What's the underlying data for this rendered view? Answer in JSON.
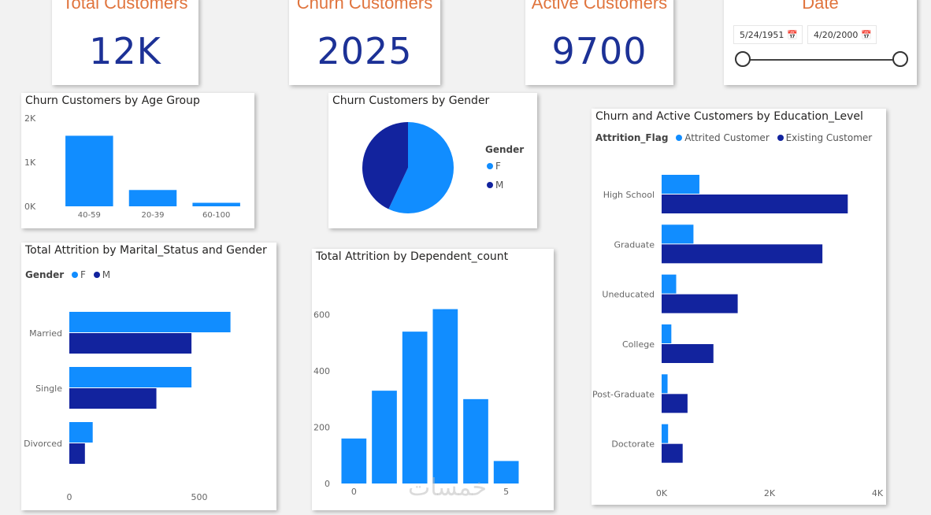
{
  "colors": {
    "light": "#118dff",
    "dark": "#12239e",
    "accent": "#e0743d"
  },
  "kpis": {
    "total": {
      "title": "Total Customers",
      "value": "12K"
    },
    "churn": {
      "title": "Churn Customers",
      "value": "2025"
    },
    "active": {
      "title": "Active Customers",
      "value": "9700"
    }
  },
  "date_slicer": {
    "title": "Date",
    "start": "5/24/1951",
    "end": "4/20/2000"
  },
  "chart_data": [
    {
      "id": "age",
      "type": "bar",
      "title": "Churn Customers by Age Group",
      "categories": [
        "40-59",
        "20-39",
        "60-100"
      ],
      "values": [
        1600,
        370,
        80
      ],
      "ylim": [
        0,
        2000
      ],
      "yticks": [
        {
          "v": 0,
          "label": "0K"
        },
        {
          "v": 1000,
          "label": "1K"
        },
        {
          "v": 2000,
          "label": "2K"
        }
      ]
    },
    {
      "id": "gender",
      "type": "pie",
      "title": "Churn Customers by Gender",
      "legend_title": "Gender",
      "labels": [
        "F",
        "M"
      ],
      "values": [
        57,
        43
      ]
    },
    {
      "id": "marital",
      "type": "bar",
      "orientation": "horizontal",
      "title": "Total Attrition by Marital_Status and Gender",
      "legend_title": "Gender",
      "categories": [
        "Married",
        "Single",
        "Divorced"
      ],
      "series": [
        {
          "name": "F",
          "values": [
            620,
            470,
            90
          ]
        },
        {
          "name": "M",
          "values": [
            470,
            335,
            60
          ]
        }
      ],
      "xlim": [
        0,
        800
      ],
      "xticks": [
        {
          "v": 0,
          "label": "0"
        },
        {
          "v": 500,
          "label": "500"
        }
      ]
    },
    {
      "id": "dependent",
      "type": "bar",
      "title": "Total Attrition by Dependent_count",
      "categories": [
        "0",
        "1",
        "2",
        "3",
        "4",
        "5"
      ],
      "values": [
        160,
        330,
        540,
        620,
        300,
        80
      ],
      "ylim": [
        0,
        700
      ],
      "yticks": [
        {
          "v": 0,
          "label": "0"
        },
        {
          "v": 200,
          "label": "200"
        },
        {
          "v": 400,
          "label": "400"
        },
        {
          "v": 600,
          "label": "600"
        }
      ],
      "xticks": [
        {
          "v": 0,
          "label": "0"
        },
        {
          "v": 5,
          "label": "5"
        }
      ]
    },
    {
      "id": "education",
      "type": "bar",
      "orientation": "horizontal",
      "title": "Churn and Active Customers by Education_Level",
      "legend_title": "Attrition_Flag",
      "categories": [
        "High School",
        "Graduate",
        "Uneducated",
        "College",
        "Post-Graduate",
        "Doctorate"
      ],
      "series": [
        {
          "name": "Attrited Customer",
          "values": [
            700,
            590,
            270,
            180,
            110,
            120
          ]
        },
        {
          "name": "Existing Customer",
          "values": [
            3450,
            2980,
            1410,
            960,
            480,
            390
          ]
        }
      ],
      "xlim": [
        0,
        4000
      ],
      "xticks": [
        {
          "v": 0,
          "label": "0K"
        },
        {
          "v": 2000,
          "label": "2K"
        },
        {
          "v": 4000,
          "label": "4K"
        }
      ]
    }
  ],
  "watermark": "خمسات"
}
